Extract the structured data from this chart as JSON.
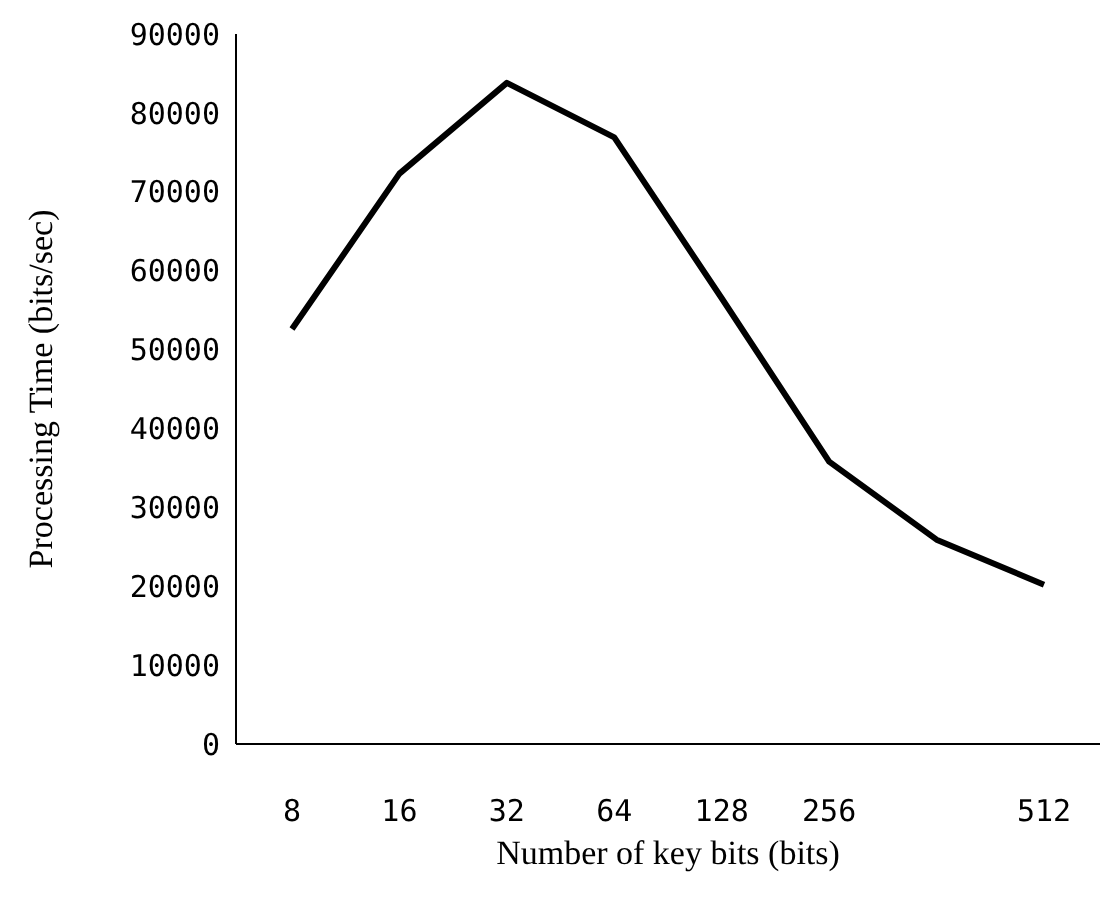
{
  "chart_data": {
    "type": "line",
    "xlabel": "Number of key bits (bits)",
    "ylabel": "Processing Time (bits/sec)",
    "categories": [
      "8",
      "16",
      "32",
      "64",
      "128",
      "256",
      null,
      "512"
    ],
    "series": [
      {
        "color": "#000000",
        "values": [
          52600,
          72300,
          83800,
          76900,
          56500,
          35800,
          25900,
          20200
        ]
      }
    ],
    "ylim": [
      0,
      90000
    ],
    "yticks": [
      0,
      10000,
      20000,
      30000,
      40000,
      50000,
      60000,
      70000,
      80000,
      90000
    ],
    "grid": false,
    "legend": false,
    "marker": "none",
    "line_style": "solid"
  }
}
